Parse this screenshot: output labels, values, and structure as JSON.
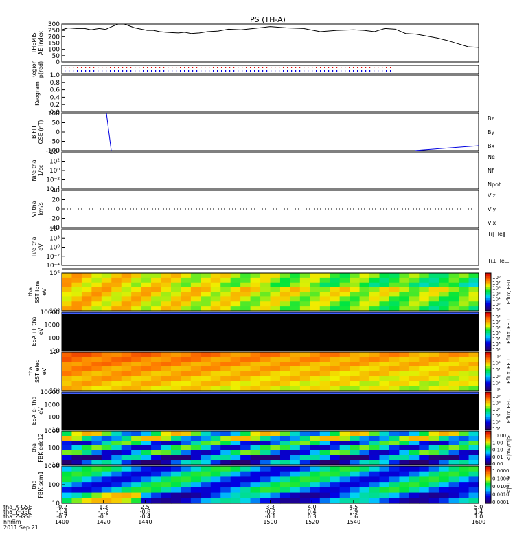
{
  "title": "PS (TH-A)",
  "colors": {
    "red": "#e00000",
    "green": "#00c800",
    "blue": "#0000e0",
    "black": "#000000"
  },
  "chart_data": {
    "type": "line",
    "x_range_label": [
      "1400",
      "1600"
    ],
    "panels": [
      {
        "id": "ae",
        "ylabel": [
          "THEMIS",
          "AE Index"
        ],
        "ylim": [
          0,
          300
        ],
        "yticks": [
          "300",
          "250",
          "200",
          "150",
          "100",
          "50",
          "0"
        ],
        "series": [
          {
            "x": [
              1400,
              1403,
              1407,
              1411,
              1414,
              1418,
              1421,
              1424,
              1427,
              1430,
              1435,
              1441,
              1444,
              1447,
              1450,
              1453,
              1456,
              1459,
              1462,
              1466,
              1470,
              1475,
              1480,
              1486,
              1492,
              1500,
              1508,
              1516,
              1524,
              1532,
              1540,
              1545,
              1550,
              1555,
              1560,
              1565,
              1570,
              1575,
              1580,
              1585,
              1590,
              1595,
              1600
            ],
            "y": [
              255,
              270,
              265,
              265,
              255,
              265,
              258,
              280,
              300,
              300,
              270,
              250,
              250,
              240,
              235,
              232,
              230,
              235,
              225,
              230,
              240,
              245,
              260,
              255,
              265,
              280,
              270,
              265,
              240,
              250,
              255,
              250,
              240,
              265,
              260,
              225,
              220,
              205,
              190,
              170,
              145,
              120,
              115
            ]
          }
        ]
      },
      {
        "id": "region",
        "ylabel": [
          "Region",
          "p(red)"
        ]
      },
      {
        "id": "keogram",
        "ylabel": [
          "Keogram"
        ],
        "ylim": [
          0,
          1
        ],
        "yticks": [
          "1.0",
          "0.8",
          "0.6",
          "0.4",
          "0.2",
          "0.0"
        ]
      },
      {
        "id": "bfgm",
        "ylabel": [
          "B FIT",
          "GSE (nT)"
        ],
        "ylim": [
          -100,
          100
        ],
        "yticks": [
          "100",
          "50",
          "0",
          "-50",
          "-100"
        ],
        "legend": [
          "Bz",
          "By",
          "Bx"
        ]
      },
      {
        "id": "ni",
        "ylabel": [
          "Ni/e tha",
          "1/cc"
        ],
        "yticks": [
          "10⁵",
          "10²",
          "10⁰",
          "10⁻²",
          "10⁻⁴"
        ],
        "legend": [
          "Ne",
          "Nf",
          "Npot"
        ]
      },
      {
        "id": "vi",
        "ylabel": [
          "Vi tha",
          "km/s"
        ],
        "ylim": [
          -40,
          40
        ],
        "yticks": [
          "40",
          "20",
          "0",
          "-20",
          "-40"
        ],
        "legend": [
          "Viz",
          "Viy",
          "Vix"
        ]
      },
      {
        "id": "ti",
        "ylabel": [
          "Ti/e tha",
          "eV"
        ],
        "yticks": [
          "10⁵",
          "10³",
          "10⁰",
          "10⁻²",
          "10⁻⁴"
        ],
        "legend": [
          "Ti‖ Te‖",
          "Ti⊥ Te⊥"
        ]
      },
      {
        "id": "sst_ions",
        "ylabel": [
          "tha",
          "SST ions",
          "eV"
        ],
        "yticks": [
          "10⁶",
          "10⁵"
        ],
        "colorbar": [
          "10⁸",
          "10⁷",
          "10⁶",
          "10⁵",
          "10⁴",
          "10³",
          "10²"
        ],
        "cblabel": "Eflux, EFU"
      },
      {
        "id": "esa_ions",
        "ylabel": [
          "ESA i+ tha",
          "eV"
        ],
        "yticks": [
          "10000",
          "1000",
          "100",
          "10"
        ],
        "colorbar": [
          "10⁸",
          "10⁷",
          "10⁶",
          "10⁵",
          "10⁴",
          "10³",
          "10²"
        ],
        "cblabel": "Eflux, EFU"
      },
      {
        "id": "sst_elec",
        "ylabel": [
          "tha",
          "SST elec",
          "eV"
        ],
        "yticks": [
          "10⁶",
          "10⁵"
        ],
        "colorbar": [
          "10⁶",
          "10⁵",
          "10⁴",
          "10³",
          "10²",
          "10¹"
        ],
        "cblabel": "Eflux, EFU"
      },
      {
        "id": "esa_elec",
        "ylabel": [
          "ESA e- tha",
          "eV"
        ],
        "yticks": [
          "10000",
          "1000",
          "100",
          "10"
        ],
        "colorbar": [
          "10⁹",
          "10⁸",
          "10⁷",
          "10⁶",
          "10⁵",
          "10⁴"
        ],
        "cblabel": "Eflux, EFU"
      },
      {
        "id": "fbk_edc",
        "ylabel": [
          "tha",
          "FBK edc12"
        ],
        "yticks": [
          "1000",
          "100",
          "10"
        ],
        "colorbar": [
          "10.00",
          "1.00",
          "0.10",
          "0.01",
          "0.00"
        ],
        "cblabel": "<|mV/m|>"
      },
      {
        "id": "fbk_scm",
        "ylabel": [
          "tha",
          "FBK scm1"
        ],
        "yticks": [
          "1000",
          "100",
          "10"
        ],
        "colorbar": [
          "1.0000",
          "0.1000",
          "0.0100",
          "0.0010",
          "0.0001"
        ],
        "cblabel": "<|nT|>"
      }
    ],
    "x_axis": {
      "row_labels": [
        "tha_X-GSE",
        "tha_Y-GSE",
        "tha_Z-GSE",
        "hhmm",
        "2011 Sep 21"
      ],
      "columns": [
        {
          "x": "1400",
          "vals": [
            "-0.2",
            "-1.4",
            "-0.7"
          ]
        },
        {
          "x": "1420",
          "vals": [
            "1.3",
            "-1.2",
            "-0.6"
          ]
        },
        {
          "x": "1440",
          "vals": [
            "2.5",
            "-0.8",
            "-0.4"
          ]
        },
        {
          "x": "1500",
          "vals": [
            "3.3",
            "-0.2",
            "-0.1"
          ]
        },
        {
          "x": "1520",
          "vals": [
            "4.0",
            "0.4",
            "0.3"
          ]
        },
        {
          "x": "1540",
          "vals": [
            "4.5",
            "0.9",
            "0.6"
          ]
        },
        {
          "x": "1600",
          "vals": [
            "5.0",
            "1.4",
            "1.0"
          ]
        }
      ]
    }
  }
}
